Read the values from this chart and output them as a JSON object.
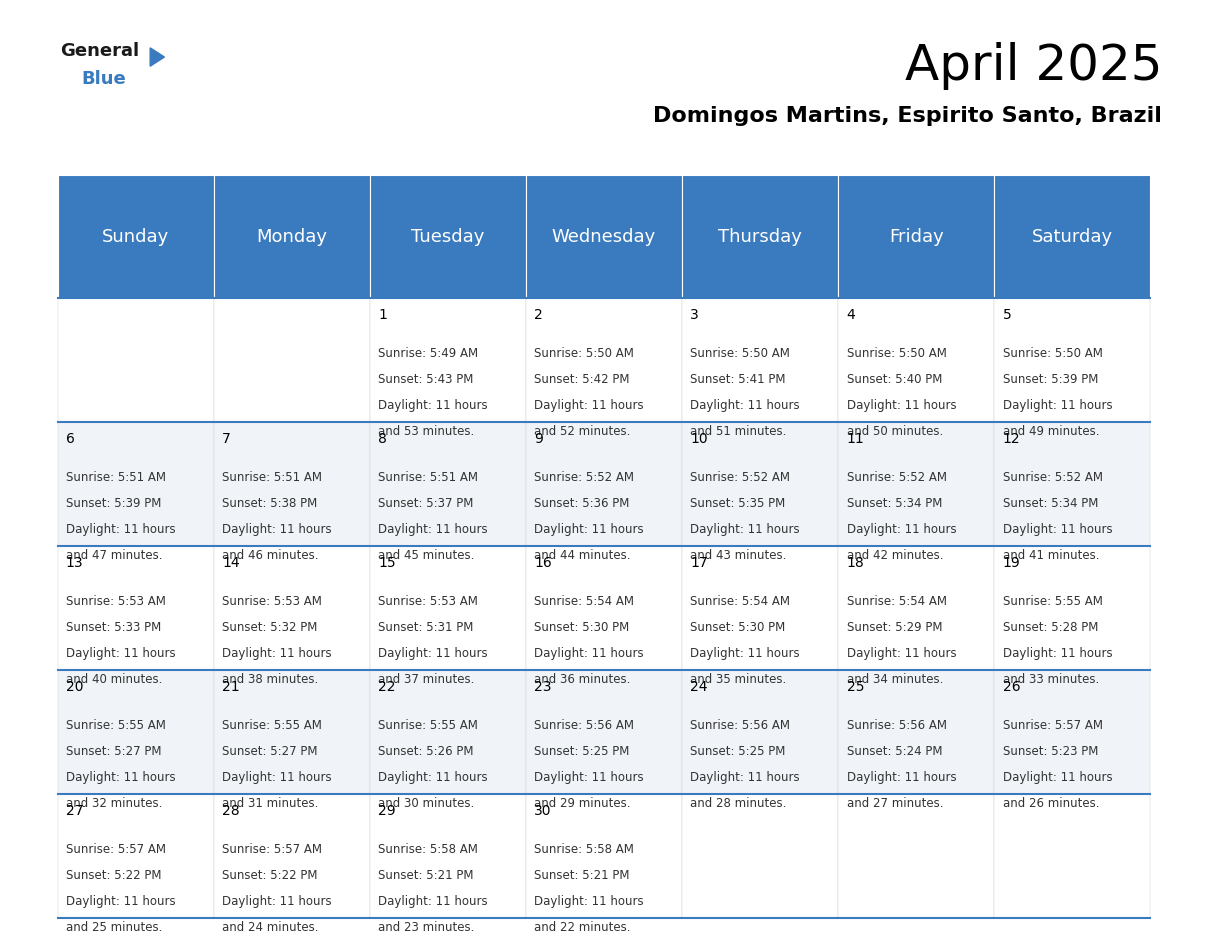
{
  "title": "April 2025",
  "subtitle": "Domingos Martins, Espirito Santo, Brazil",
  "header_color": "#3a7abf",
  "header_text_color": "#ffffff",
  "cell_bg_color": "#ffffff",
  "alt_cell_bg_color": "#f0f4f8",
  "day_names": [
    "Sunday",
    "Monday",
    "Tuesday",
    "Wednesday",
    "Thursday",
    "Friday",
    "Saturday"
  ],
  "title_fontsize": 36,
  "subtitle_fontsize": 16,
  "header_fontsize": 13,
  "cell_fontsize": 8.5,
  "day_num_fontsize": 10,
  "days": [
    {
      "day": 1,
      "col": 2,
      "row": 0,
      "sunrise": "5:49 AM",
      "sunset": "5:43 PM",
      "daylight_hours": 11,
      "daylight_minutes": 53
    },
    {
      "day": 2,
      "col": 3,
      "row": 0,
      "sunrise": "5:50 AM",
      "sunset": "5:42 PM",
      "daylight_hours": 11,
      "daylight_minutes": 52
    },
    {
      "day": 3,
      "col": 4,
      "row": 0,
      "sunrise": "5:50 AM",
      "sunset": "5:41 PM",
      "daylight_hours": 11,
      "daylight_minutes": 51
    },
    {
      "day": 4,
      "col": 5,
      "row": 0,
      "sunrise": "5:50 AM",
      "sunset": "5:40 PM",
      "daylight_hours": 11,
      "daylight_minutes": 50
    },
    {
      "day": 5,
      "col": 6,
      "row": 0,
      "sunrise": "5:50 AM",
      "sunset": "5:39 PM",
      "daylight_hours": 11,
      "daylight_minutes": 49
    },
    {
      "day": 6,
      "col": 0,
      "row": 1,
      "sunrise": "5:51 AM",
      "sunset": "5:39 PM",
      "daylight_hours": 11,
      "daylight_minutes": 47
    },
    {
      "day": 7,
      "col": 1,
      "row": 1,
      "sunrise": "5:51 AM",
      "sunset": "5:38 PM",
      "daylight_hours": 11,
      "daylight_minutes": 46
    },
    {
      "day": 8,
      "col": 2,
      "row": 1,
      "sunrise": "5:51 AM",
      "sunset": "5:37 PM",
      "daylight_hours": 11,
      "daylight_minutes": 45
    },
    {
      "day": 9,
      "col": 3,
      "row": 1,
      "sunrise": "5:52 AM",
      "sunset": "5:36 PM",
      "daylight_hours": 11,
      "daylight_minutes": 44
    },
    {
      "day": 10,
      "col": 4,
      "row": 1,
      "sunrise": "5:52 AM",
      "sunset": "5:35 PM",
      "daylight_hours": 11,
      "daylight_minutes": 43
    },
    {
      "day": 11,
      "col": 5,
      "row": 1,
      "sunrise": "5:52 AM",
      "sunset": "5:34 PM",
      "daylight_hours": 11,
      "daylight_minutes": 42
    },
    {
      "day": 12,
      "col": 6,
      "row": 1,
      "sunrise": "5:52 AM",
      "sunset": "5:34 PM",
      "daylight_hours": 11,
      "daylight_minutes": 41
    },
    {
      "day": 13,
      "col": 0,
      "row": 2,
      "sunrise": "5:53 AM",
      "sunset": "5:33 PM",
      "daylight_hours": 11,
      "daylight_minutes": 40
    },
    {
      "day": 14,
      "col": 1,
      "row": 2,
      "sunrise": "5:53 AM",
      "sunset": "5:32 PM",
      "daylight_hours": 11,
      "daylight_minutes": 38
    },
    {
      "day": 15,
      "col": 2,
      "row": 2,
      "sunrise": "5:53 AM",
      "sunset": "5:31 PM",
      "daylight_hours": 11,
      "daylight_minutes": 37
    },
    {
      "day": 16,
      "col": 3,
      "row": 2,
      "sunrise": "5:54 AM",
      "sunset": "5:30 PM",
      "daylight_hours": 11,
      "daylight_minutes": 36
    },
    {
      "day": 17,
      "col": 4,
      "row": 2,
      "sunrise": "5:54 AM",
      "sunset": "5:30 PM",
      "daylight_hours": 11,
      "daylight_minutes": 35
    },
    {
      "day": 18,
      "col": 5,
      "row": 2,
      "sunrise": "5:54 AM",
      "sunset": "5:29 PM",
      "daylight_hours": 11,
      "daylight_minutes": 34
    },
    {
      "day": 19,
      "col": 6,
      "row": 2,
      "sunrise": "5:55 AM",
      "sunset": "5:28 PM",
      "daylight_hours": 11,
      "daylight_minutes": 33
    },
    {
      "day": 20,
      "col": 0,
      "row": 3,
      "sunrise": "5:55 AM",
      "sunset": "5:27 PM",
      "daylight_hours": 11,
      "daylight_minutes": 32
    },
    {
      "day": 21,
      "col": 1,
      "row": 3,
      "sunrise": "5:55 AM",
      "sunset": "5:27 PM",
      "daylight_hours": 11,
      "daylight_minutes": 31
    },
    {
      "day": 22,
      "col": 2,
      "row": 3,
      "sunrise": "5:55 AM",
      "sunset": "5:26 PM",
      "daylight_hours": 11,
      "daylight_minutes": 30
    },
    {
      "day": 23,
      "col": 3,
      "row": 3,
      "sunrise": "5:56 AM",
      "sunset": "5:25 PM",
      "daylight_hours": 11,
      "daylight_minutes": 29
    },
    {
      "day": 24,
      "col": 4,
      "row": 3,
      "sunrise": "5:56 AM",
      "sunset": "5:25 PM",
      "daylight_hours": 11,
      "daylight_minutes": 28
    },
    {
      "day": 25,
      "col": 5,
      "row": 3,
      "sunrise": "5:56 AM",
      "sunset": "5:24 PM",
      "daylight_hours": 11,
      "daylight_minutes": 27
    },
    {
      "day": 26,
      "col": 6,
      "row": 3,
      "sunrise": "5:57 AM",
      "sunset": "5:23 PM",
      "daylight_hours": 11,
      "daylight_minutes": 26
    },
    {
      "day": 27,
      "col": 0,
      "row": 4,
      "sunrise": "5:57 AM",
      "sunset": "5:22 PM",
      "daylight_hours": 11,
      "daylight_minutes": 25
    },
    {
      "day": 28,
      "col": 1,
      "row": 4,
      "sunrise": "5:57 AM",
      "sunset": "5:22 PM",
      "daylight_hours": 11,
      "daylight_minutes": 24
    },
    {
      "day": 29,
      "col": 2,
      "row": 4,
      "sunrise": "5:58 AM",
      "sunset": "5:21 PM",
      "daylight_hours": 11,
      "daylight_minutes": 23
    },
    {
      "day": 30,
      "col": 3,
      "row": 4,
      "sunrise": "5:58 AM",
      "sunset": "5:21 PM",
      "daylight_hours": 11,
      "daylight_minutes": 22
    }
  ]
}
